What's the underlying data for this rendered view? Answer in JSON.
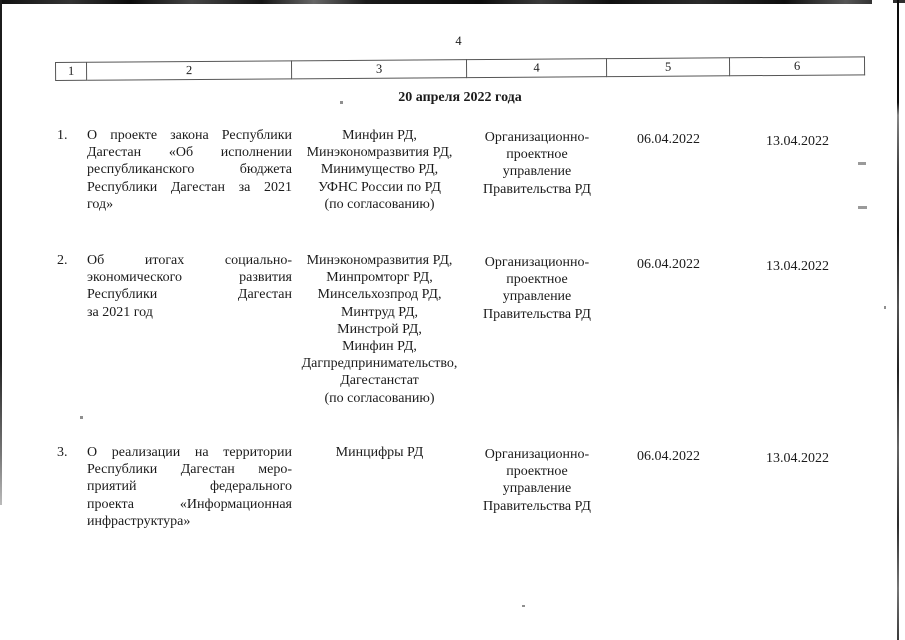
{
  "page": {
    "number": "4",
    "date_heading": "20 апреля 2022 года"
  },
  "table": {
    "header": [
      "1",
      "2",
      "3",
      "4",
      "5",
      "6"
    ],
    "rows": [
      {
        "num": "1.",
        "subject_lines": [
          "О проекте закона Республики",
          "Дагестан «Об исполнении",
          "республиканского бюджета",
          "Республики Дагестан за 2021",
          "год»"
        ],
        "responsible": "Минфин РД,\nМинэкономразвития РД,\nМинимущество РД,\nУФНС России по РД\n(по согласованию)",
        "department": "Организационно-\nпроектное\nуправление\nПравительства РД",
        "date1": "06.04.2022",
        "date2": "13.04.2022"
      },
      {
        "num": "2.",
        "subject_lines": [
          "Об итогах социально-",
          "экономического развития",
          "Республики Дагестан",
          "за 2021 год"
        ],
        "responsible": "Минэкономразвития РД,\nМинпромторг РД,\nМинсельхозпрод РД,\nМинтруд РД,\nМинстрой РД,\nМинфин РД,\nДагпредпринимательство,\nДагестанстат\n(по согласованию)",
        "department": "Организационно-\nпроектное\nуправление\nПравительства РД",
        "date1": "06.04.2022",
        "date2": "13.04.2022"
      },
      {
        "num": "3.",
        "subject_lines": [
          "О реализации на территории",
          "Республики Дагестан меро-",
          "приятий федерального",
          "проекта «Информационная",
          "инфраструктура»"
        ],
        "responsible": "Минцифры РД",
        "department": "Организационно-\nпроектное\nуправление\nПравительства РД",
        "date1": "06.04.2022",
        "date2": "13.04.2022"
      }
    ]
  }
}
